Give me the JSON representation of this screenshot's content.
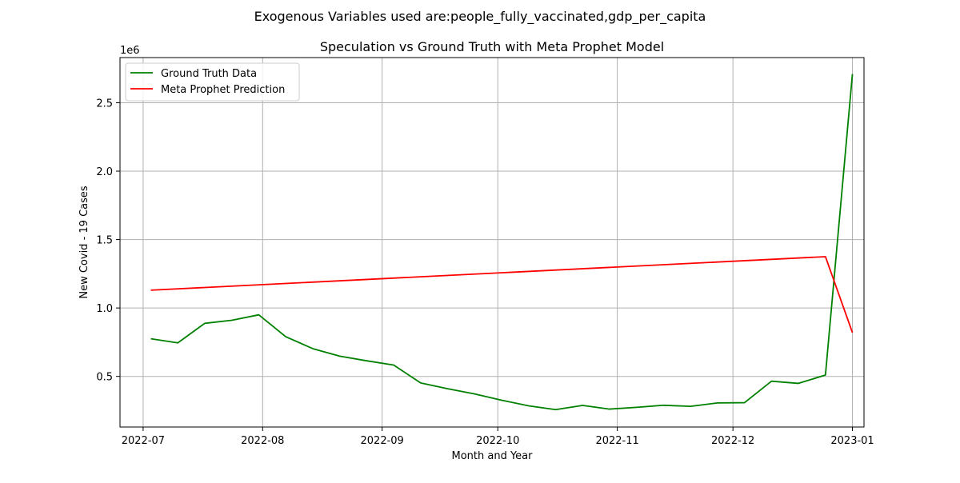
{
  "suptitle": "Exogenous Variables used are:people_fully_vaccinated,gdp_per_capita",
  "chart_data": {
    "type": "line",
    "title": "Speculation vs Ground Truth with Meta Prophet Model",
    "xlabel": "Month and Year",
    "ylabel": "New Covid - 19 Cases",
    "y_offset_label": "1e6",
    "xlim": [
      "2022-06-25",
      "2023-01-04"
    ],
    "ylim": [
      0.13,
      2.83
    ],
    "y_scale_factor": 1000000,
    "xticks": [
      {
        "date": "2022-07-01",
        "label": "2022-07"
      },
      {
        "date": "2022-08-01",
        "label": "2022-08"
      },
      {
        "date": "2022-09-01",
        "label": "2022-09"
      },
      {
        "date": "2022-10-01",
        "label": "2022-10"
      },
      {
        "date": "2022-11-01",
        "label": "2022-11"
      },
      {
        "date": "2022-12-01",
        "label": "2022-12"
      },
      {
        "date": "2023-01-01",
        "label": "2023-01"
      }
    ],
    "yticks": [
      {
        "value": 0.5,
        "label": "0.5"
      },
      {
        "value": 1.0,
        "label": "1.0"
      },
      {
        "value": 1.5,
        "label": "1.5"
      },
      {
        "value": 2.0,
        "label": "2.0"
      },
      {
        "value": 2.5,
        "label": "2.5"
      }
    ],
    "grid": true,
    "legend_position": "top-left",
    "series": [
      {
        "name": "Ground Truth Data",
        "color": "#008000",
        "x": [
          "2022-07-03",
          "2022-07-10",
          "2022-07-17",
          "2022-07-24",
          "2022-07-31",
          "2022-08-07",
          "2022-08-14",
          "2022-08-21",
          "2022-08-28",
          "2022-09-04",
          "2022-09-11",
          "2022-09-18",
          "2022-09-25",
          "2022-10-02",
          "2022-10-09",
          "2022-10-16",
          "2022-10-23",
          "2022-10-30",
          "2022-11-06",
          "2022-11-13",
          "2022-11-20",
          "2022-11-27",
          "2022-12-04",
          "2022-12-11",
          "2022-12-18",
          "2022-12-25",
          "2023-01-01"
        ],
        "y": [
          0.775,
          0.745,
          0.888,
          0.91,
          0.95,
          0.79,
          0.703,
          0.648,
          0.614,
          0.583,
          0.452,
          0.41,
          0.372,
          0.326,
          0.285,
          0.257,
          0.288,
          0.261,
          0.274,
          0.289,
          0.281,
          0.306,
          0.308,
          0.465,
          0.449,
          0.51,
          2.71
        ]
      },
      {
        "name": "Meta Prophet Prediction",
        "color": "#ff0000",
        "x": [
          "2022-07-03",
          "2022-12-25",
          "2023-01-01"
        ],
        "y": [
          1.13,
          1.375,
          0.82
        ]
      }
    ]
  }
}
